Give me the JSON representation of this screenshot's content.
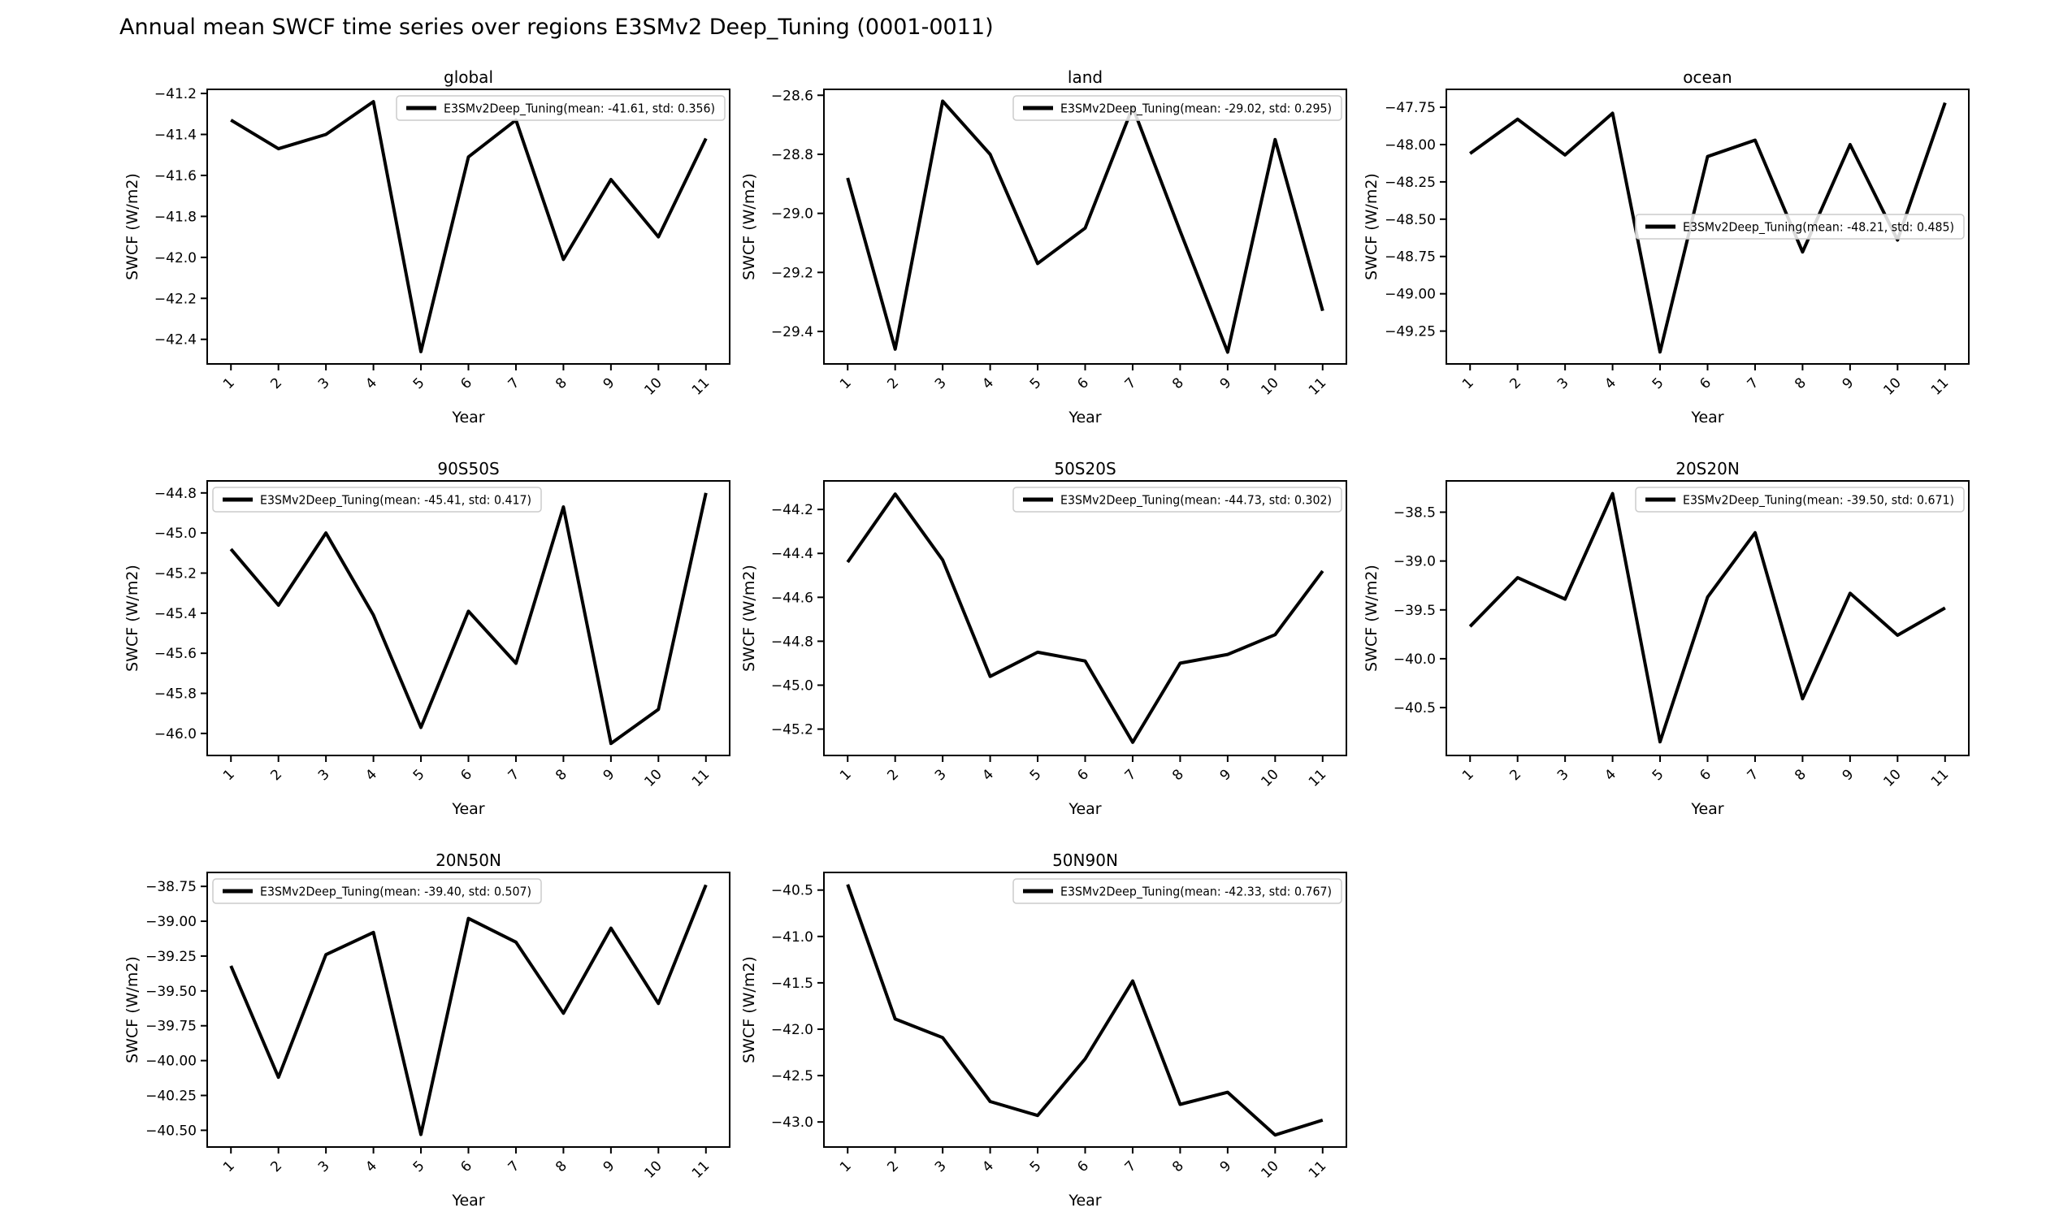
{
  "page_title": "Annual mean SWCF time series over regions E3SMv2 Deep_Tuning (0001-0011)",
  "figure": {
    "xlabel": "Year",
    "ylabel": "SWCF (W/m2)",
    "x_ticks": [
      1,
      2,
      3,
      4,
      5,
      6,
      7,
      8,
      9,
      10,
      11
    ],
    "line_color": "#000000",
    "legend_border_color": "#cccccc",
    "legend_bg_color": "rgba(255,255,255,0.85)",
    "background_color": "#ffffff"
  },
  "chart_data": [
    {
      "type": "line",
      "title": "global",
      "x": [
        1,
        2,
        3,
        4,
        5,
        6,
        7,
        8,
        9,
        10,
        11
      ],
      "values": [
        -41.33,
        -41.47,
        -41.4,
        -41.24,
        -42.46,
        -41.51,
        -41.33,
        -42.01,
        -41.62,
        -41.9,
        -41.42
      ],
      "ylim": [
        -42.52,
        -41.18
      ],
      "yticks": [
        -41.2,
        -41.4,
        -41.6,
        -41.8,
        -42.0,
        -42.2,
        -42.4
      ],
      "ytick_decimals": 1,
      "xlabel": "Year",
      "ylabel": "SWCF (W/m2)",
      "mean": -41.61,
      "std": 0.356,
      "legend_label": "E3SMv2Deep_Tuning(mean: -41.61, std: 0.356)",
      "legend_loc": "upper-right"
    },
    {
      "type": "line",
      "title": "land",
      "x": [
        1,
        2,
        3,
        4,
        5,
        6,
        7,
        8,
        9,
        10,
        11
      ],
      "values": [
        -28.88,
        -29.46,
        -28.62,
        -28.8,
        -29.17,
        -29.05,
        -28.64,
        -29.06,
        -29.47,
        -28.75,
        -29.33
      ],
      "ylim": [
        -29.51,
        -28.58
      ],
      "yticks": [
        -28.6,
        -28.8,
        -29.0,
        -29.2,
        -29.4
      ],
      "ytick_decimals": 1,
      "xlabel": "Year",
      "ylabel": "SWCF (W/m2)",
      "mean": -29.02,
      "std": 0.295,
      "legend_label": "E3SMv2Deep_Tuning(mean: -29.02, std: 0.295)",
      "legend_loc": "upper-right"
    },
    {
      "type": "line",
      "title": "ocean",
      "x": [
        1,
        2,
        3,
        4,
        5,
        6,
        7,
        8,
        9,
        10,
        11
      ],
      "values": [
        -48.06,
        -47.83,
        -48.07,
        -47.79,
        -49.39,
        -48.08,
        -47.97,
        -48.72,
        -48.0,
        -48.64,
        -47.72
      ],
      "ylim": [
        -49.47,
        -47.63
      ],
      "yticks": [
        -47.75,
        -48.0,
        -48.25,
        -48.5,
        -48.75,
        -49.0,
        -49.25
      ],
      "ytick_decimals": 2,
      "xlabel": "Year",
      "ylabel": "SWCF (W/m2)",
      "mean": -48.21,
      "std": 0.485,
      "legend_label": "E3SMv2Deep_Tuning(mean: -48.21, std: 0.485)",
      "legend_loc": "center-right"
    },
    {
      "type": "line",
      "title": "90S50S",
      "x": [
        1,
        2,
        3,
        4,
        5,
        6,
        7,
        8,
        9,
        10,
        11
      ],
      "values": [
        -45.08,
        -45.36,
        -45.0,
        -45.41,
        -45.97,
        -45.39,
        -45.65,
        -44.87,
        -46.05,
        -45.88,
        -44.8
      ],
      "ylim": [
        -46.11,
        -44.74
      ],
      "yticks": [
        -44.8,
        -45.0,
        -45.2,
        -45.4,
        -45.6,
        -45.8,
        -46.0
      ],
      "ytick_decimals": 1,
      "xlabel": "Year",
      "ylabel": "SWCF (W/m2)",
      "mean": -45.41,
      "std": 0.417,
      "legend_label": "E3SMv2Deep_Tuning(mean: -45.41, std: 0.417)",
      "legend_loc": "upper-left"
    },
    {
      "type": "line",
      "title": "50S20S",
      "x": [
        1,
        2,
        3,
        4,
        5,
        6,
        7,
        8,
        9,
        10,
        11
      ],
      "values": [
        -44.44,
        -44.13,
        -44.43,
        -44.96,
        -44.85,
        -44.89,
        -45.26,
        -44.9,
        -44.86,
        -44.77,
        -44.48
      ],
      "ylim": [
        -45.32,
        -44.07
      ],
      "yticks": [
        -44.2,
        -44.4,
        -44.6,
        -44.8,
        -45.0,
        -45.2
      ],
      "ytick_decimals": 1,
      "xlabel": "Year",
      "ylabel": "SWCF (W/m2)",
      "mean": -44.73,
      "std": 0.302,
      "legend_label": "E3SMv2Deep_Tuning(mean: -44.73, std: 0.302)",
      "legend_loc": "upper-right"
    },
    {
      "type": "line",
      "title": "20S20N",
      "x": [
        1,
        2,
        3,
        4,
        5,
        6,
        7,
        8,
        9,
        10,
        11
      ],
      "values": [
        -39.67,
        -39.17,
        -39.39,
        -38.31,
        -40.85,
        -39.37,
        -38.71,
        -40.41,
        -39.33,
        -39.76,
        -39.48
      ],
      "ylim": [
        -40.99,
        -38.18
      ],
      "yticks": [
        -38.5,
        -39.0,
        -39.5,
        -40.0,
        -40.5
      ],
      "ytick_decimals": 1,
      "xlabel": "Year",
      "ylabel": "SWCF (W/m2)",
      "mean": -39.5,
      "std": 0.671,
      "legend_label": "E3SMv2Deep_Tuning(mean: -39.50, std: 0.671)",
      "legend_loc": "upper-right"
    },
    {
      "type": "line",
      "title": "20N50N",
      "x": [
        1,
        2,
        3,
        4,
        5,
        6,
        7,
        8,
        9,
        10,
        11
      ],
      "values": [
        -39.32,
        -40.12,
        -39.24,
        -39.08,
        -40.53,
        -38.98,
        -39.15,
        -39.66,
        -39.05,
        -39.59,
        -38.74
      ],
      "ylim": [
        -40.62,
        -38.65
      ],
      "yticks": [
        -38.75,
        -39.0,
        -39.25,
        -39.5,
        -39.75,
        -40.0,
        -40.25,
        -40.5
      ],
      "ytick_decimals": 2,
      "xlabel": "Year",
      "ylabel": "SWCF (W/m2)",
      "mean": -39.4,
      "std": 0.507,
      "legend_label": "E3SMv2Deep_Tuning(mean: -39.40, std: 0.507)",
      "legend_loc": "upper-left"
    },
    {
      "type": "line",
      "title": "50N90N",
      "x": [
        1,
        2,
        3,
        4,
        5,
        6,
        7,
        8,
        9,
        10,
        11
      ],
      "values": [
        -40.44,
        -41.89,
        -42.09,
        -42.78,
        -42.93,
        -42.32,
        -41.48,
        -42.81,
        -42.68,
        -43.14,
        -42.98
      ],
      "ylim": [
        -43.27,
        -40.31
      ],
      "yticks": [
        -40.5,
        -41.0,
        -41.5,
        -42.0,
        -42.5,
        -43.0
      ],
      "ytick_decimals": 1,
      "xlabel": "Year",
      "ylabel": "SWCF (W/m2)",
      "mean": -42.33,
      "std": 0.767,
      "legend_label": "E3SMv2Deep_Tuning(mean: -42.33, std: 0.767)",
      "legend_loc": "upper-right"
    }
  ]
}
